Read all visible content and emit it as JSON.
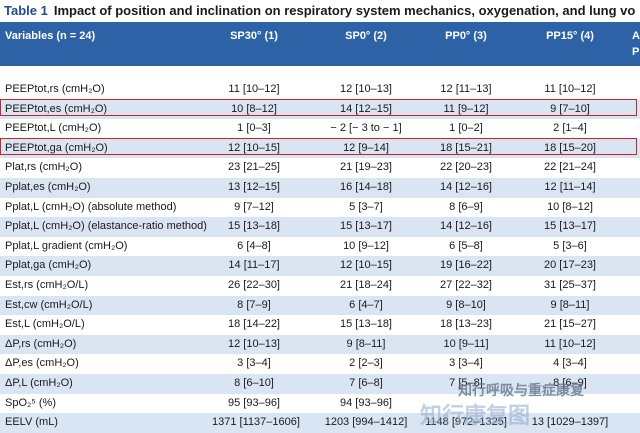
{
  "caption": {
    "label": "Table 1",
    "title": "Impact of position and inclination on respiratory system mechanics, oxygenation, and lung vo"
  },
  "header": {
    "variables": "Variables (n = 24)",
    "col1": "SP30° (1)",
    "col2": "SP0° (2)",
    "col3": "PP0° (3)",
    "col4": "PP15° (4)",
    "col5_line1": "A",
    "col5_line2": "P"
  },
  "rows": [
    {
      "label": "PEEPtot,rs (cmH₂O)",
      "v1": "11 [10–12]",
      "v2": "12 [10–13]",
      "v3": "12 [11–13]",
      "v4": "11 [10–12]"
    },
    {
      "label": "PEEPtot,es (cmH₂O)",
      "v1": "10 [8–12]",
      "v2": "14 [12–15]",
      "v3": "11 [9–12]",
      "v4": "9 [7–10]"
    },
    {
      "label": "PEEPtot,L (cmH₂O)",
      "v1": "1 [0–3]",
      "v2": "− 2 [− 3 to − 1]",
      "v3": "1 [0–2]",
      "v4": "2 [1–4]"
    },
    {
      "label": "PEEPtot,ga (cmH₂O)",
      "v1": "12 [10–15]",
      "v2": "12 [9–14]",
      "v3": "18 [15–21]",
      "v4": "18 [15–20]"
    },
    {
      "label": "Plat,rs (cmH₂O)",
      "v1": "23 [21–25]",
      "v2": "21 [19–23]",
      "v3": "22 [20–23]",
      "v4": "22 [21–24]"
    },
    {
      "label": "Pplat,es (cmH₂O)",
      "v1": "13 [12–15]",
      "v2": "16 [14–18]",
      "v3": "14 [12–16]",
      "v4": "12 [11–14]"
    },
    {
      "label": "Pplat,L (cmH₂O) (absolute method)",
      "v1": "9 [7–12]",
      "v2": "5 [3–7]",
      "v3": "8 [6–9]",
      "v4": "10 [8–12]"
    },
    {
      "label": "Pplat,L (cmH₂O) (elastance-ratio method)",
      "v1": "15 [13–18]",
      "v2": "15 [13–17]",
      "v3": "14 [12–16]",
      "v4": "15 [13–17]"
    },
    {
      "label": "Pplat,L gradient (cmH₂O)",
      "v1": "6 [4–8]",
      "v2": "10 [9–12]",
      "v3": "6 [5–8]",
      "v4": "5 [3–6]"
    },
    {
      "label": "Pplat,ga (cmH₂O)",
      "v1": "14 [11–17]",
      "v2": "12 [10–15]",
      "v3": "19 [16–22]",
      "v4": "20 [17–23]"
    },
    {
      "label": "Est,rs (cmH₂O/L)",
      "v1": "26 [22–30]",
      "v2": "21 [18–24]",
      "v3": "27 [22–32]",
      "v4": "31 [25–37]"
    },
    {
      "label": "Est,cw (cmH₂O/L)",
      "v1": "8 [7–9]",
      "v2": "6 [4–7]",
      "v3": "9 [8–10]",
      "v4": "9 [8–11]"
    },
    {
      "label": "Est,L (cmH₂O/L)",
      "v1": "18 [14–22]",
      "v2": "15 [13–18]",
      "v3": "18 [13–23]",
      "v4": "21 [15–27]"
    },
    {
      "label": "ΔP,rs (cmH₂O)",
      "v1": "12 [10–13]",
      "v2": "9 [8–11]",
      "v3": "10 [9–11]",
      "v4": "11 [10–12]"
    },
    {
      "label": "ΔP,es (cmH₂O)",
      "v1": "3 [3–4]",
      "v2": "2 [2–3]",
      "v3": "3 [3–4]",
      "v4": "4 [3–4]"
    },
    {
      "label": "ΔP,L (cmH₂O)",
      "v1": "8 [6–10]",
      "v2": "7 [6–8]",
      "v3": "7 [5–8]",
      "v4": "8 [6–9]"
    },
    {
      "label": "SpO₂⁵ (%)",
      "v1": "95 [93–96]",
      "v2": "94 [93–96]",
      "v3": "",
      "v4": ""
    },
    {
      "label": "EELV (mL)",
      "v1": "1371 [1137–1606]",
      "v2": "1203 [994–1412]",
      "v3": "1148 [972–1325]",
      "v4": "13 [1029–1397]"
    }
  ],
  "watermark": {
    "line1": "知行呼吸与重症康复",
    "line2": "知行康复图"
  }
}
